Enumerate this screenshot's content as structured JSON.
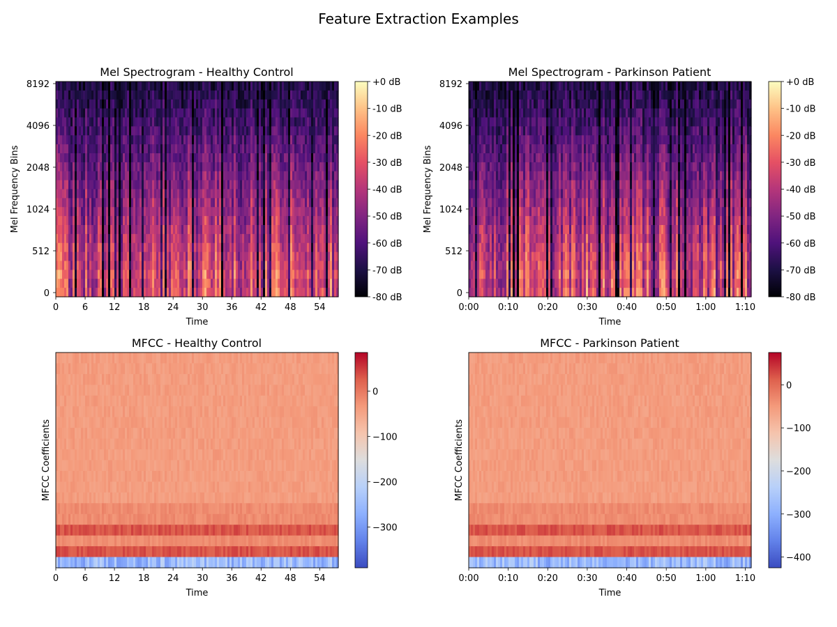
{
  "figure": {
    "title": "Feature Extraction Examples"
  },
  "chart_data": [
    {
      "type": "heatmap",
      "title": "Mel Spectrogram - Healthy Control",
      "xlabel": "Time",
      "ylabel": "Mel Frequency Bins",
      "x_ticks": [
        "0",
        "6",
        "12",
        "18",
        "24",
        "30",
        "36",
        "42",
        "48",
        "54"
      ],
      "x_tick_values": [
        0,
        6,
        12,
        18,
        24,
        30,
        36,
        42,
        48,
        54
      ],
      "xlim": [
        0,
        57.8
      ],
      "y_ticks": [
        "0",
        "512",
        "1024",
        "2048",
        "4096",
        "8192"
      ],
      "colormap": "magma",
      "colorbar_ticks": [
        "+0 dB",
        "-10 dB",
        "-20 dB",
        "-30 dB",
        "-40 dB",
        "-50 dB",
        "-60 dB",
        "-70 dB",
        "-80 dB"
      ],
      "colorbar_values": [
        0,
        -10,
        -20,
        -30,
        -40,
        -50,
        -60,
        -70,
        -80
      ],
      "colorbar_range": [
        -80,
        0
      ],
      "seed": 7
    },
    {
      "type": "heatmap",
      "title": "Mel Spectrogram - Parkinson Patient",
      "xlabel": "Time",
      "ylabel": "Mel Frequency Bins",
      "x_ticks": [
        "0:00",
        "0:10",
        "0:20",
        "0:30",
        "0:40",
        "0:50",
        "1:00",
        "1:10"
      ],
      "x_tick_values": [
        0,
        10,
        20,
        30,
        40,
        50,
        60,
        70
      ],
      "xlim": [
        0,
        71.5
      ],
      "y_ticks": [
        "0",
        "512",
        "1024",
        "2048",
        "4096",
        "8192"
      ],
      "colormap": "magma",
      "colorbar_ticks": [
        "+0 dB",
        "-10 dB",
        "-20 dB",
        "-30 dB",
        "-40 dB",
        "-50 dB",
        "-60 dB",
        "-70 dB",
        "-80 dB"
      ],
      "colorbar_values": [
        0,
        -10,
        -20,
        -30,
        -40,
        -50,
        -60,
        -70,
        -80
      ],
      "colorbar_range": [
        -80,
        0
      ],
      "seed": 19
    },
    {
      "type": "heatmap",
      "title": "MFCC - Healthy Control",
      "xlabel": "Time",
      "ylabel": "MFCC Coefficients",
      "x_ticks": [
        "0",
        "6",
        "12",
        "18",
        "24",
        "30",
        "36",
        "42",
        "48",
        "54"
      ],
      "x_tick_values": [
        0,
        6,
        12,
        18,
        24,
        30,
        36,
        42,
        48,
        54
      ],
      "xlim": [
        0,
        57.8
      ],
      "colormap": "coolwarm",
      "colorbar_ticks": [
        "0",
        "−100",
        "−200",
        "−300"
      ],
      "colorbar_values": [
        0,
        -100,
        -200,
        -300
      ],
      "colorbar_range": [
        -390,
        85
      ],
      "seed": 31
    },
    {
      "type": "heatmap",
      "title": "MFCC - Parkinson Patient",
      "xlabel": "Time",
      "ylabel": "MFCC Coefficients",
      "x_ticks": [
        "0:00",
        "0:10",
        "0:20",
        "0:30",
        "0:40",
        "0:50",
        "1:00",
        "1:10"
      ],
      "x_tick_values": [
        0,
        10,
        20,
        30,
        40,
        50,
        60,
        70
      ],
      "xlim": [
        0,
        71.5
      ],
      "colormap": "coolwarm",
      "colorbar_ticks": [
        "0",
        "−100",
        "−200",
        "−300",
        "−400"
      ],
      "colorbar_values": [
        0,
        -100,
        -200,
        -300,
        -400
      ],
      "colorbar_range": [
        -425,
        75
      ],
      "seed": 43
    }
  ]
}
